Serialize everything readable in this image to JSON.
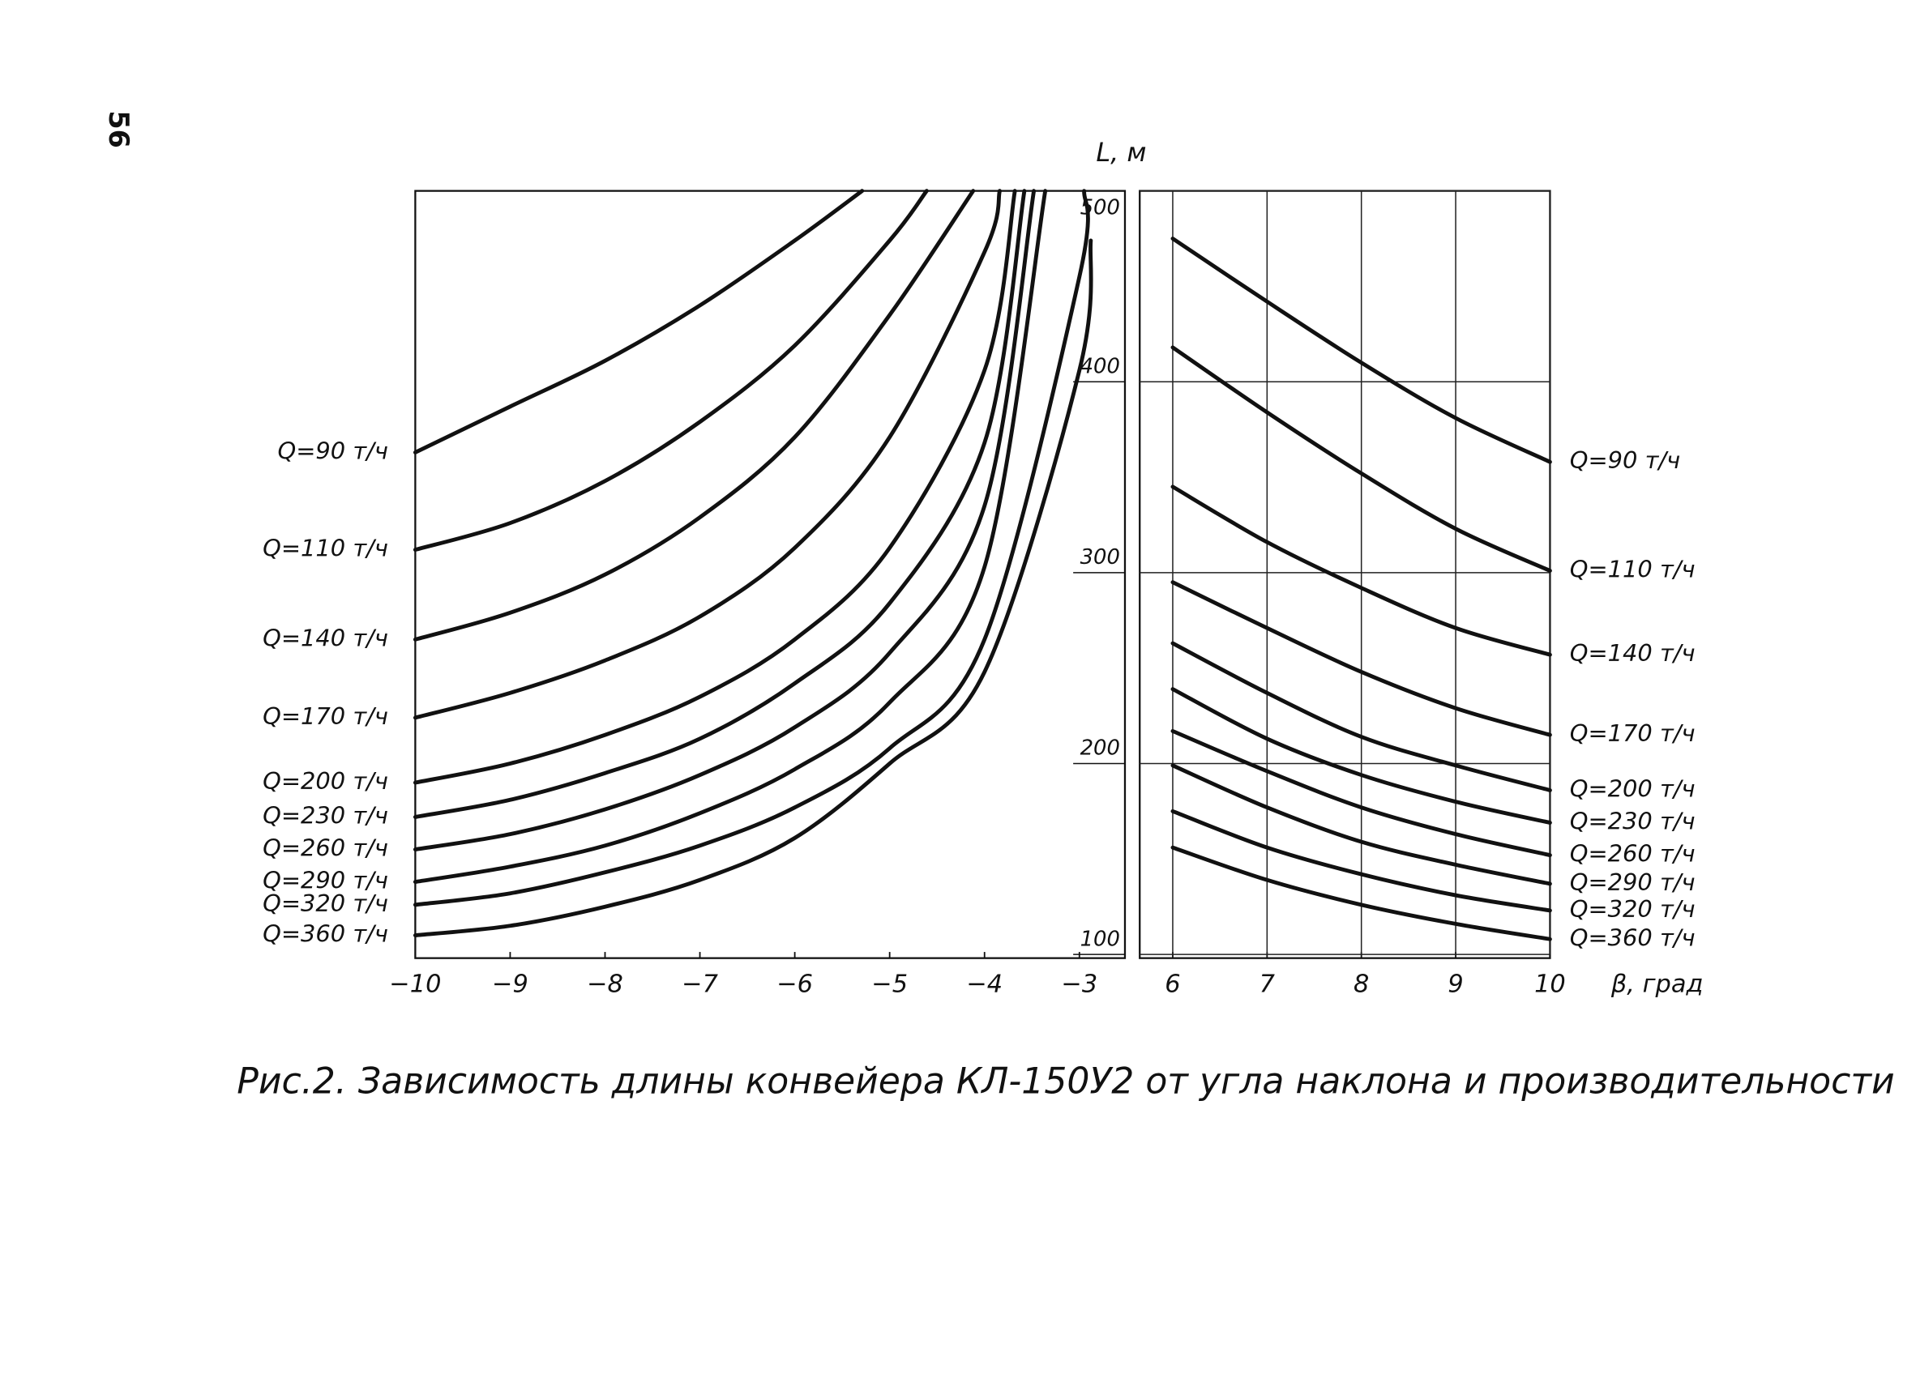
{
  "page_number": "56",
  "caption": "Рис.2. Зависимость длины конвейера КЛ-150У2 от угла наклона и производительности",
  "chart_data": [
    {
      "type": "line",
      "color": "#111111",
      "grid": false,
      "ylabel": "L, м",
      "xlim": [
        -10,
        -2.52
      ],
      "ylim": [
        100,
        500
      ],
      "xticks": [
        {
          "value": -10,
          "label": "−10"
        },
        {
          "value": -9,
          "label": "−9"
        },
        {
          "value": -8,
          "label": "−8"
        },
        {
          "value": -7,
          "label": "−7"
        },
        {
          "value": -6,
          "label": "−6"
        },
        {
          "value": -5,
          "label": "−5"
        },
        {
          "value": -4,
          "label": "−4"
        },
        {
          "value": -3,
          "label": "−3"
        }
      ],
      "yticks": [
        100,
        200,
        300,
        400,
        500
      ],
      "series": [
        {
          "name": "Q=90 т/ч",
          "x": [
            -10,
            -9,
            -8,
            -7,
            -6,
            -5.29
          ],
          "values": [
            363,
            387,
            411,
            440,
            474,
            500
          ]
        },
        {
          "name": "Q=110 т/ч",
          "x": [
            -10,
            -9,
            -8,
            -7,
            -6,
            -5,
            -4.61
          ],
          "values": [
            312,
            326,
            348,
            379,
            419,
            474,
            500
          ]
        },
        {
          "name": "Q=140 т/ч",
          "x": [
            -10,
            -9,
            -8,
            -7,
            -6,
            -5,
            -4.12
          ],
          "values": [
            265,
            279,
            299,
            329,
            371,
            435,
            500
          ]
        },
        {
          "name": "Q=170 т/ч",
          "x": [
            -10,
            -9,
            -8,
            -7,
            -6,
            -5,
            -4,
            -3.84
          ],
          "values": [
            224,
            237,
            254,
            277,
            313,
            371,
            468,
            500
          ]
        },
        {
          "name": "Q=200 т/ч",
          "x": [
            -10,
            -9,
            -8,
            -7,
            -6,
            -5,
            -4,
            -3.68
          ],
          "values": [
            190,
            200,
            215,
            235,
            265,
            313,
            406,
            500
          ]
        },
        {
          "name": "Q=230 т/ч",
          "x": [
            -10,
            -9,
            -8,
            -7,
            -6,
            -5,
            -4,
            -3.58
          ],
          "values": [
            172,
            181,
            195,
            213,
            242,
            284,
            368,
            500
          ]
        },
        {
          "name": "Q=260 т/ч",
          "x": [
            -10,
            -9,
            -8,
            -7,
            -6,
            -5,
            -4,
            -3.48
          ],
          "values": [
            155,
            163,
            176,
            194,
            219,
            258,
            335,
            500
          ]
        },
        {
          "name": "Q=290 т/ч",
          "x": [
            -10,
            -9,
            -8,
            -7,
            -6,
            -5,
            -4,
            -3.36
          ],
          "values": [
            138,
            146,
            157,
            174,
            197,
            232,
            303,
            500
          ]
        },
        {
          "name": "Q=320 т/ч",
          "x": [
            -10,
            -9,
            -8,
            -7,
            -6,
            -5,
            -4,
            -3,
            -2.95
          ],
          "values": [
            126,
            132,
            143,
            157,
            177,
            208,
            265,
            455,
            500
          ]
        },
        {
          "name": "Q=360 т/ч",
          "x": [
            -10,
            -9,
            -8,
            -7,
            -6,
            -5,
            -4,
            -3,
            -2.88
          ],
          "values": [
            110,
            115,
            125,
            139,
            161,
            200,
            248,
            406,
            474
          ]
        }
      ]
    },
    {
      "type": "line",
      "color": "#111111",
      "grid": true,
      "xlabel": "β, град",
      "xlim": [
        5.65,
        10
      ],
      "ylim": [
        100,
        500
      ],
      "xticks": [
        6,
        7,
        8,
        9,
        10
      ],
      "x": [
        6,
        7,
        8,
        9,
        10
      ],
      "series": [
        {
          "name": "Q=90 т/ч",
          "values": [
            475,
            442,
            410,
            381,
            358
          ]
        },
        {
          "name": "Q=110 т/ч",
          "values": [
            418,
            384,
            352,
            323,
            301
          ]
        },
        {
          "name": "Q=140 т/ч",
          "values": [
            345,
            316,
            292,
            271,
            257
          ]
        },
        {
          "name": "Q=170 т/ч",
          "values": [
            295,
            271,
            248,
            229,
            215
          ]
        },
        {
          "name": "Q=200 т/ч",
          "values": [
            263,
            237,
            214,
            199,
            186
          ]
        },
        {
          "name": "Q=230 т/ч",
          "values": [
            239,
            213,
            194,
            180,
            169
          ]
        },
        {
          "name": "Q=260 т/ч",
          "values": [
            217,
            196,
            177,
            163,
            152
          ]
        },
        {
          "name": "Q=290 т/ч",
          "values": [
            199,
            177,
            159,
            147,
            137
          ]
        },
        {
          "name": "Q=320 т/ч",
          "values": [
            175,
            156,
            142,
            131,
            123
          ]
        },
        {
          "name": "Q=360 т/ч",
          "values": [
            156,
            139,
            126,
            116,
            108
          ]
        }
      ]
    }
  ]
}
